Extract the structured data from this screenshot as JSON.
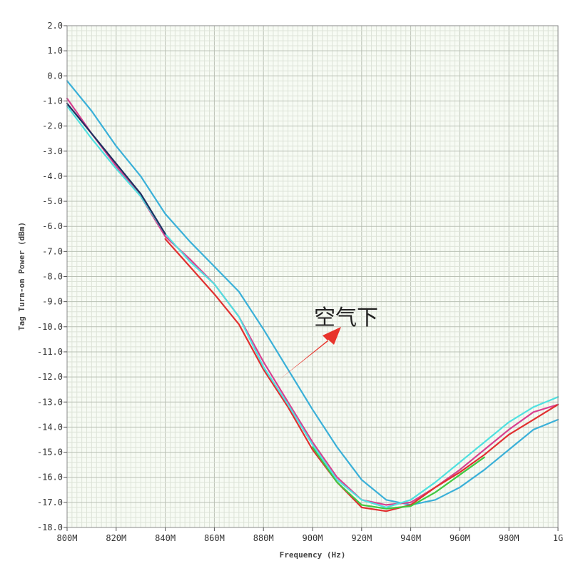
{
  "chart_data": {
    "type": "line",
    "xlabel": "Frequency (Hz)",
    "ylabel": "Tag Turn-on Power (dBm)",
    "xlim": [
      800,
      1000
    ],
    "ylim": [
      -18,
      2
    ],
    "x_ticks": [
      "800M",
      "820M",
      "840M",
      "860M",
      "880M",
      "900M",
      "920M",
      "940M",
      "960M",
      "980M",
      "1G"
    ],
    "y_ticks": [
      "2.0",
      "1.0",
      "0.0",
      "-1.0",
      "-2.0",
      "-3.0",
      "-4.0",
      "-5.0",
      "-6.0",
      "-7.0",
      "-8.0",
      "-9.0",
      "-10.0",
      "-11.0",
      "-12.0",
      "-13.0",
      "-14.0",
      "-15.0",
      "-16.0",
      "-17.0",
      "-18.0"
    ],
    "grid": true,
    "series": [
      {
        "color": "#3ab0d8",
        "x": [
          800,
          810,
          820,
          830,
          840,
          850,
          860,
          870,
          880,
          890,
          900,
          910,
          920,
          930,
          940,
          950,
          960,
          970,
          980,
          990,
          1000
        ],
        "y": [
          -0.2,
          -1.4,
          -2.8,
          -4.0,
          -5.5,
          -6.6,
          -7.6,
          -8.6,
          -10.1,
          -11.7,
          -13.3,
          -14.8,
          -16.1,
          -16.9,
          -17.1,
          -16.9,
          -16.4,
          -15.7,
          -14.9,
          -14.1,
          -13.7
        ]
      },
      {
        "color": "#d84090",
        "x": [
          800,
          810,
          820,
          830,
          840,
          850,
          860,
          870,
          880,
          890,
          900,
          910,
          920,
          930,
          940,
          950,
          960,
          970,
          980,
          990,
          1000
        ],
        "y": [
          -0.9,
          -2.3,
          -3.6,
          -4.8,
          -6.4,
          -7.3,
          -8.3,
          -9.6,
          -11.4,
          -13.0,
          -14.6,
          -16.0,
          -16.9,
          -17.1,
          -17.0,
          -16.4,
          -15.7,
          -14.9,
          -14.1,
          -13.4,
          -13.1
        ]
      },
      {
        "color": "#e03030",
        "x": [
          840,
          850,
          860,
          870,
          880,
          890,
          900,
          910,
          920,
          930,
          940,
          950,
          960,
          970,
          980,
          990,
          1000
        ],
        "y": [
          -6.5,
          -7.6,
          -8.7,
          -9.9,
          -11.7,
          -13.2,
          -14.9,
          -16.2,
          -17.2,
          -17.35,
          -17.1,
          -16.4,
          -15.8,
          -15.1,
          -14.3,
          -13.7,
          -13.1
        ]
      },
      {
        "color": "#40c840",
        "x": [
          900,
          910,
          920,
          930,
          940,
          950,
          960,
          970
        ],
        "y": [
          -14.8,
          -16.2,
          -17.1,
          -17.25,
          -17.15,
          -16.6,
          -15.9,
          -15.2
        ]
      },
      {
        "color": "#50e0e0",
        "x": [
          800,
          810,
          820,
          830,
          840,
          850,
          860,
          870,
          880,
          890,
          900,
          910,
          920,
          930,
          940,
          950,
          960,
          970,
          980,
          990,
          1000
        ],
        "y": [
          -1.2,
          -2.5,
          -3.7,
          -4.8,
          -6.3,
          -7.4,
          -8.3,
          -9.6,
          -11.6,
          -13.1,
          -14.7,
          -16.1,
          -16.9,
          -17.2,
          -16.9,
          -16.2,
          -15.4,
          -14.6,
          -13.8,
          -13.2,
          -12.8
        ]
      },
      {
        "color": "#203060",
        "x": [
          800,
          810,
          820,
          830,
          840
        ],
        "y": [
          -1.1,
          -2.3,
          -3.5,
          -4.7,
          -6.3
        ]
      }
    ],
    "annotations": [
      {
        "text": "空气下"
      }
    ]
  }
}
